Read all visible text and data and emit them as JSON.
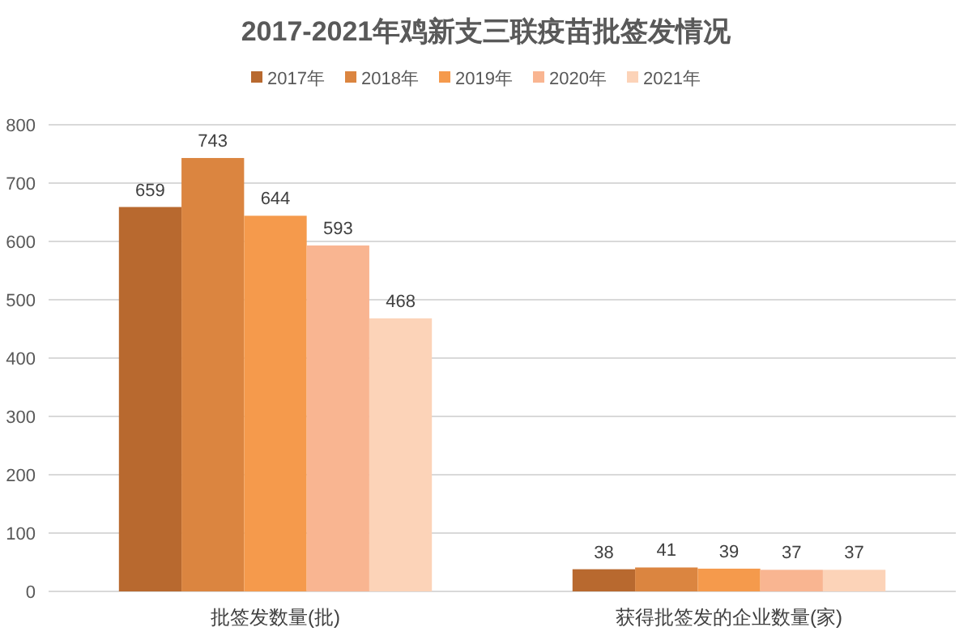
{
  "chart_data": {
    "type": "bar",
    "title": "2017-2021年鸡新支三联疫苗批签发情况",
    "categories": [
      "批签发数量(批)",
      "获得批签发的企业数量(家)"
    ],
    "series": [
      {
        "name": "2017年",
        "color": "#b8692f",
        "values": [
          659,
          38
        ]
      },
      {
        "name": "2018年",
        "color": "#db8540",
        "values": [
          743,
          41
        ]
      },
      {
        "name": "2019年",
        "color": "#f59a4c",
        "values": [
          644,
          39
        ]
      },
      {
        "name": "2020年",
        "color": "#f9b591",
        "values": [
          593,
          37
        ]
      },
      {
        "name": "2021年",
        "color": "#fcd3b8",
        "values": [
          468,
          37
        ]
      }
    ],
    "ylim": [
      0,
      800
    ],
    "yticks": [
      0,
      100,
      200,
      300,
      400,
      500,
      600,
      700,
      800
    ],
    "grid": "y",
    "legend": "top",
    "data_labels": true
  }
}
